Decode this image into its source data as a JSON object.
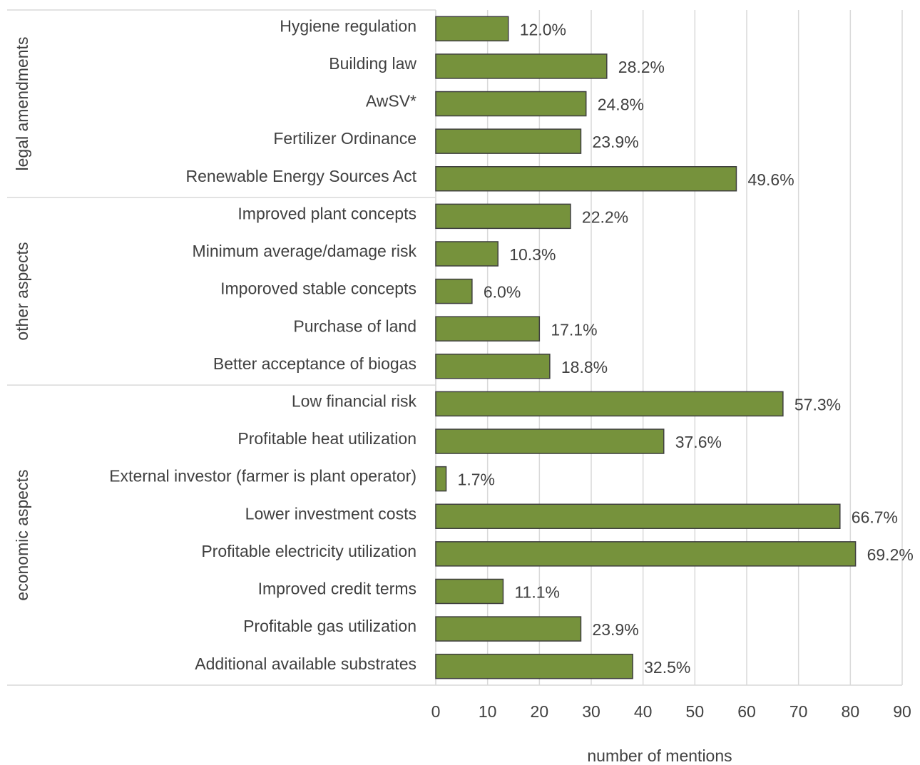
{
  "chart_data": {
    "type": "bar",
    "orientation": "horizontal",
    "x_label": "number of mentions",
    "color": "#76923c",
    "grid": true,
    "xlim": [
      0,
      90
    ],
    "xticks": [
      0,
      10,
      20,
      30,
      40,
      50,
      60,
      70,
      80,
      90
    ],
    "groups": [
      {
        "name": "legal amendments",
        "categories": [
          "Hygiene regulation",
          "Building law",
          "AwSV*",
          "Fertilizer Ordinance",
          "Renewable Energy Sources Act"
        ],
        "values": [
          14,
          33,
          29,
          28,
          58
        ],
        "percent_labels": [
          "12.0%",
          "28.2%",
          "24.8%",
          "23.9%",
          "49.6%"
        ]
      },
      {
        "name": "other aspects",
        "categories": [
          "Improved plant concepts",
          "Minimum average/damage risk",
          "Imporoved stable concepts",
          "Purchase of land",
          "Better acceptance of biogas"
        ],
        "values": [
          26,
          12,
          7,
          20,
          22
        ],
        "percent_labels": [
          "22.2%",
          "10.3%",
          "6.0%",
          "17.1%",
          "18.8%"
        ]
      },
      {
        "name": "economic aspects",
        "categories": [
          "Low financial risk",
          "Profitable heat utilization",
          "External investor (farmer is plant operator)",
          "Lower investment costs",
          "Profitable electricity utilization",
          "Improved credit terms",
          "Profitable gas utilization",
          "Additional available substrates"
        ],
        "values": [
          67,
          44,
          2,
          78,
          81,
          13,
          28,
          38
        ],
        "percent_labels": [
          "57.3%",
          "37.6%",
          "1.7%",
          "66.7%",
          "69.2%",
          "11.1%",
          "23.9%",
          "32.5%"
        ]
      }
    ]
  }
}
